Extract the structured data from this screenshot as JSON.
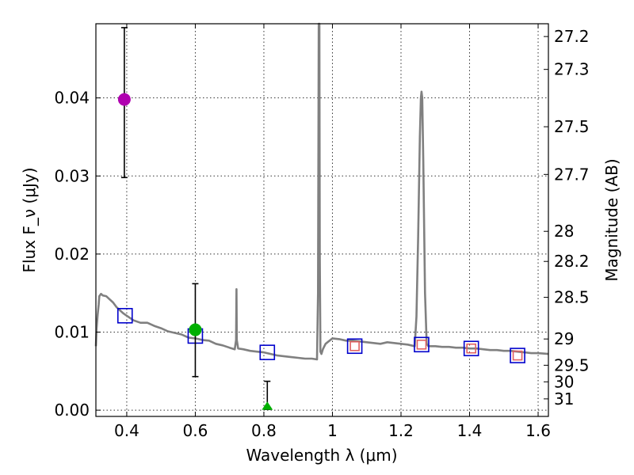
{
  "chart_data": {
    "type": "scatter",
    "xlabel": "Wavelength λ (μm)",
    "ylabel": "Flux F_ν (μJy)",
    "ylabel_right": "Magnitude (AB)",
    "xlim": [
      0.31,
      1.63
    ],
    "ylim": [
      -0.0008,
      0.0495
    ],
    "x_ticks": [
      0.4,
      0.6,
      0.8,
      1.0,
      1.2,
      1.4,
      1.6
    ],
    "x_tick_labels": [
      "0.4",
      "0.6",
      "0.8",
      "1",
      "1.2",
      "1.4",
      "1.6"
    ],
    "y_ticks": [
      0.0,
      0.01,
      0.02,
      0.03,
      0.04
    ],
    "y_tick_labels": [
      "0.00",
      "0.01",
      "0.02",
      "0.03",
      "0.04"
    ],
    "right_ticks": [
      {
        "label": "27.2",
        "value": 27.2
      },
      {
        "label": "27.3",
        "value": 27.3
      },
      {
        "label": "27.5",
        "value": 27.5
      },
      {
        "label": "27.7",
        "value": 27.7
      },
      {
        "label": "28",
        "value": 28
      },
      {
        "label": "28.2",
        "value": 28.2
      },
      {
        "label": "28.5",
        "value": 28.5
      },
      {
        "label": "29",
        "value": 29
      },
      {
        "label": "29.5",
        "value": 29.5
      },
      {
        "label": "30",
        "value": 30
      },
      {
        "label": "31",
        "value": 31
      }
    ],
    "grid": true,
    "series": [
      {
        "kind": "line",
        "color": "#808080",
        "x": [
          0.31,
          0.312,
          0.315,
          0.318,
          0.32,
          0.325,
          0.33,
          0.34,
          0.35,
          0.36,
          0.37,
          0.38,
          0.39,
          0.4,
          0.42,
          0.44,
          0.46,
          0.48,
          0.5,
          0.52,
          0.54,
          0.56,
          0.58,
          0.6,
          0.62,
          0.64,
          0.66,
          0.68,
          0.7,
          0.715,
          0.719,
          0.72,
          0.721,
          0.725,
          0.74,
          0.76,
          0.78,
          0.8,
          0.82,
          0.84,
          0.86,
          0.88,
          0.9,
          0.92,
          0.94,
          0.955,
          0.958,
          0.96,
          0.962,
          0.963,
          0.965,
          0.968,
          0.972,
          0.98,
          1.0,
          1.02,
          1.04,
          1.06,
          1.08,
          1.1,
          1.12,
          1.14,
          1.16,
          1.18,
          1.2,
          1.22,
          1.24,
          1.245,
          1.25,
          1.255,
          1.258,
          1.26,
          1.262,
          1.265,
          1.27,
          1.275,
          1.28,
          1.3,
          1.32,
          1.34,
          1.36,
          1.38,
          1.4,
          1.42,
          1.44,
          1.46,
          1.48,
          1.5,
          1.52,
          1.54,
          1.56,
          1.58,
          1.6,
          1.63
        ],
        "y": [
          0.0082,
          0.0105,
          0.0122,
          0.0135,
          0.0146,
          0.0149,
          0.0147,
          0.0146,
          0.0142,
          0.0138,
          0.0132,
          0.0128,
          0.0124,
          0.0121,
          0.0115,
          0.0112,
          0.0112,
          0.0108,
          0.0105,
          0.0101,
          0.0099,
          0.0097,
          0.0093,
          0.0092,
          0.009,
          0.0089,
          0.0085,
          0.0083,
          0.008,
          0.0078,
          0.009,
          0.0155,
          0.009,
          0.0079,
          0.0078,
          0.0076,
          0.0075,
          0.0074,
          0.0072,
          0.007,
          0.0069,
          0.0068,
          0.0067,
          0.0066,
          0.0066,
          0.0065,
          0.015,
          0.05,
          0.05,
          0.02,
          0.0075,
          0.0072,
          0.0078,
          0.0085,
          0.0092,
          0.0091,
          0.0089,
          0.0089,
          0.0088,
          0.0087,
          0.0086,
          0.0085,
          0.0087,
          0.0086,
          0.0085,
          0.0084,
          0.0082,
          0.012,
          0.022,
          0.035,
          0.04,
          0.0408,
          0.04,
          0.032,
          0.015,
          0.0085,
          0.0082,
          0.0082,
          0.0081,
          0.0081,
          0.008,
          0.008,
          0.0079,
          0.0079,
          0.0078,
          0.0077,
          0.0077,
          0.0076,
          0.0076,
          0.0075,
          0.0074,
          0.0073,
          0.0073,
          0.0072
        ]
      },
      {
        "kind": "open-square",
        "color": "#0000cc",
        "x": [
          0.395,
          0.6,
          0.81,
          1.065,
          1.26,
          1.405,
          1.54
        ],
        "y": [
          0.0121,
          0.0095,
          0.0074,
          0.0082,
          0.0084,
          0.0079,
          0.007
        ]
      },
      {
        "kind": "open-square-small",
        "color": "#e06060",
        "x": [
          1.065,
          1.26,
          1.405,
          1.54
        ],
        "y": [
          0.0082,
          0.0084,
          0.0079,
          0.007
        ]
      },
      {
        "kind": "errorbar-point",
        "color": "#b000b0",
        "x": [
          0.393
        ],
        "y": [
          0.0398
        ],
        "yerr_low": [
          0.0298
        ],
        "yerr_high": [
          0.049
        ]
      },
      {
        "kind": "errorbar-point",
        "color": "#00b000",
        "x": [
          0.6
        ],
        "y": [
          0.0103
        ],
        "yerr_low": [
          0.0043
        ],
        "yerr_high": [
          0.0162
        ]
      },
      {
        "kind": "errorbar-triangle",
        "color": "#00b000",
        "x": [
          0.81
        ],
        "y": [
          0.0001
        ],
        "yerr_low": [
          0.0001
        ],
        "yerr_high": [
          0.0037
        ]
      }
    ]
  }
}
